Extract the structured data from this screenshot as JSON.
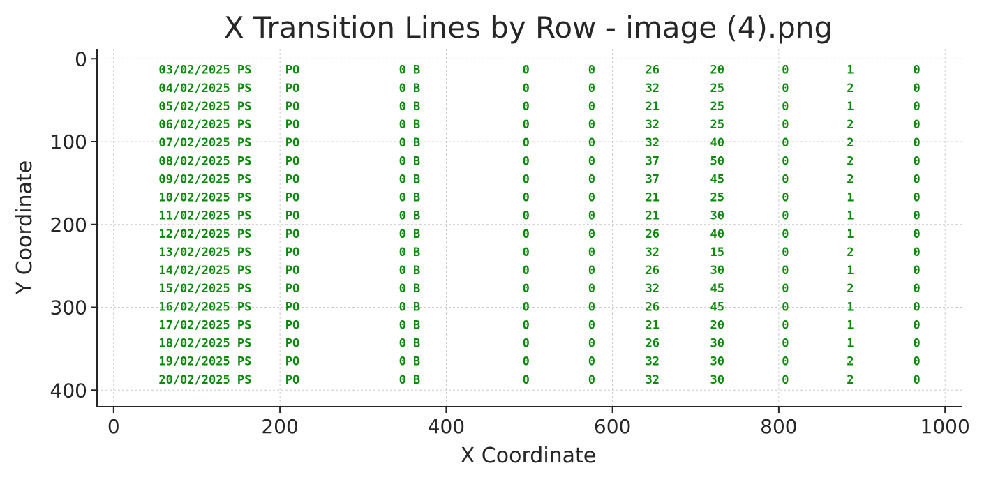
{
  "chart_data": {
    "type": "scatter",
    "title": "X Transition Lines by Row - image (4).png",
    "xlabel": "X Coordinate",
    "ylabel": "Y Coordinate",
    "xlim": [
      -20,
      1020
    ],
    "ylim": [
      420,
      -12
    ],
    "y_inverted": true,
    "grid": true,
    "xticks": [
      0,
      200,
      400,
      600,
      800,
      1000
    ],
    "yticks": [
      0,
      100,
      200,
      300,
      400
    ],
    "color": "#0a8a0a",
    "columns_x": [
      110,
      215,
      356,
      496,
      575,
      648,
      726,
      808,
      886,
      966
    ],
    "rows": [
      {
        "y": 13,
        "cells": [
          "03/02/2025 PS",
          "PO",
          "0 B",
          "0",
          "0",
          "26",
          "20",
          "0",
          "1",
          "0"
        ]
      },
      {
        "y": 35,
        "cells": [
          "04/02/2025 PS",
          "PO",
          "0 B",
          "0",
          "0",
          "32",
          "25",
          "0",
          "2",
          "0"
        ]
      },
      {
        "y": 57,
        "cells": [
          "05/02/2025 PS",
          "PO",
          "0 B",
          "0",
          "0",
          "21",
          "25",
          "0",
          "1",
          "0"
        ]
      },
      {
        "y": 79,
        "cells": [
          "06/02/2025 PS",
          "PO",
          "0 B",
          "0",
          "0",
          "32",
          "25",
          "0",
          "2",
          "0"
        ]
      },
      {
        "y": 101,
        "cells": [
          "07/02/2025 PS",
          "PO",
          "0 B",
          "0",
          "0",
          "32",
          "40",
          "0",
          "2",
          "0"
        ]
      },
      {
        "y": 123,
        "cells": [
          "08/02/2025 PS",
          "PO",
          "0 B",
          "0",
          "0",
          "37",
          "50",
          "0",
          "2",
          "0"
        ]
      },
      {
        "y": 145,
        "cells": [
          "09/02/2025 PS",
          "PO",
          "0 B",
          "0",
          "0",
          "37",
          "45",
          "0",
          "2",
          "0"
        ]
      },
      {
        "y": 167,
        "cells": [
          "10/02/2025 PS",
          "PO",
          "0 B",
          "0",
          "0",
          "21",
          "25",
          "0",
          "1",
          "0"
        ]
      },
      {
        "y": 189,
        "cells": [
          "11/02/2025 PS",
          "PO",
          "0 B",
          "0",
          "0",
          "21",
          "30",
          "0",
          "1",
          "0"
        ]
      },
      {
        "y": 211,
        "cells": [
          "12/02/2025 PS",
          "PO",
          "0 B",
          "0",
          "0",
          "26",
          "40",
          "0",
          "1",
          "0"
        ]
      },
      {
        "y": 233,
        "cells": [
          "13/02/2025 PS",
          "PO",
          "0 B",
          "0",
          "0",
          "32",
          "15",
          "0",
          "2",
          "0"
        ]
      },
      {
        "y": 255,
        "cells": [
          "14/02/2025 PS",
          "PO",
          "0 B",
          "0",
          "0",
          "26",
          "30",
          "0",
          "1",
          "0"
        ]
      },
      {
        "y": 277,
        "cells": [
          "15/02/2025 PS",
          "PO",
          "0 B",
          "0",
          "0",
          "32",
          "45",
          "0",
          "2",
          "0"
        ]
      },
      {
        "y": 299,
        "cells": [
          "16/02/2025 PS",
          "PO",
          "0 B",
          "0",
          "0",
          "26",
          "45",
          "0",
          "1",
          "0"
        ]
      },
      {
        "y": 321,
        "cells": [
          "17/02/2025 PS",
          "PO",
          "0 B",
          "0",
          "0",
          "21",
          "20",
          "0",
          "1",
          "0"
        ]
      },
      {
        "y": 343,
        "cells": [
          "18/02/2025 PS",
          "PO",
          "0 B",
          "0",
          "0",
          "26",
          "30",
          "0",
          "1",
          "0"
        ]
      },
      {
        "y": 365,
        "cells": [
          "19/02/2025 PS",
          "PO",
          "0 B",
          "0",
          "0",
          "32",
          "30",
          "0",
          "2",
          "0"
        ]
      },
      {
        "y": 387,
        "cells": [
          "20/02/2025 PS",
          "PO",
          "0 B",
          "0",
          "0",
          "32",
          "30",
          "0",
          "2",
          "0"
        ]
      }
    ]
  }
}
